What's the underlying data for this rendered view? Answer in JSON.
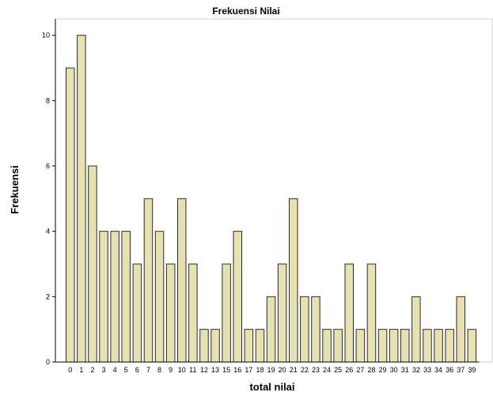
{
  "chart_data": {
    "type": "bar",
    "title": "Frekuensi Nilai",
    "xlabel": "total nilai",
    "ylabel": "Frekuensi",
    "ylim": [
      0,
      10.5
    ],
    "yticks": [
      0,
      2,
      4,
      6,
      8,
      10
    ],
    "categories": [
      "0",
      "1",
      "2",
      "3",
      "4",
      "5",
      "6",
      "7",
      "8",
      "9",
      "10",
      "11",
      "12",
      "13",
      "15",
      "16",
      "17",
      "18",
      "19",
      "20",
      "21",
      "22",
      "23",
      "24",
      "25",
      "26",
      "27",
      "28",
      "29",
      "30",
      "31",
      "32",
      "33",
      "34",
      "36",
      "37",
      "39"
    ],
    "values": [
      9,
      10,
      6,
      4,
      4,
      4,
      3,
      5,
      4,
      3,
      5,
      3,
      1,
      1,
      3,
      4,
      1,
      1,
      2,
      3,
      5,
      2,
      2,
      1,
      1,
      3,
      1,
      3,
      1,
      1,
      1,
      2,
      1,
      1,
      1,
      2,
      1
    ],
    "grid": false,
    "colors": {
      "bar_fill": "#e7e0b0",
      "bar_stroke": "#2b2b2b",
      "axis": "#000000",
      "frame": "#cfcfcf"
    }
  }
}
